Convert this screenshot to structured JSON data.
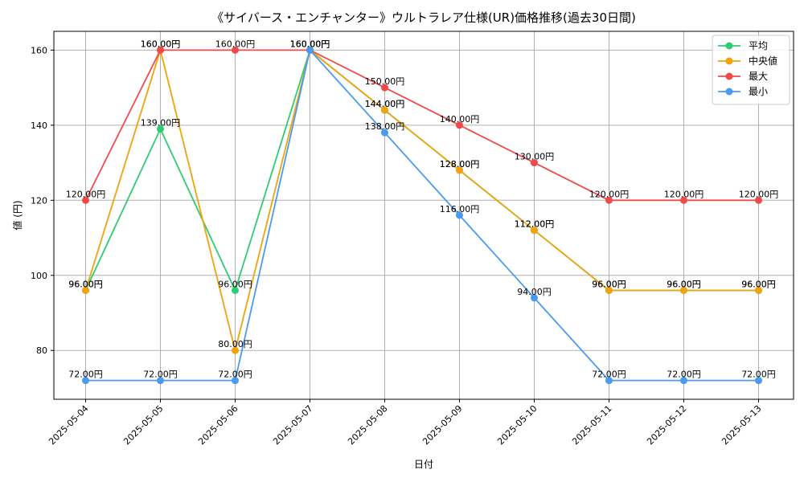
{
  "chart_data": {
    "type": "line",
    "title": "《サイバース・エンチャンター》ウルトラレア仕様(UR)価格推移(過去30日間)",
    "xlabel": "日付",
    "ylabel": "値 (円)",
    "categories": [
      "2025-05-04",
      "2025-05-05",
      "2025-05-06",
      "2025-05-07",
      "2025-05-08",
      "2025-05-09",
      "2025-05-10",
      "2025-05-11",
      "2025-05-12",
      "2025-05-13"
    ],
    "ylim": [
      67,
      165
    ],
    "yticks": [
      80,
      100,
      120,
      140,
      160
    ],
    "grid": true,
    "legend_position": "top-right",
    "label_suffix": "円",
    "series": [
      {
        "name": "平均",
        "color": "#2ecc71",
        "values": [
          96,
          139,
          96,
          160,
          144,
          128,
          112,
          96,
          96,
          96
        ]
      },
      {
        "name": "中央値",
        "color": "#f0a30a",
        "values": [
          96,
          160,
          80,
          160,
          144,
          128,
          112,
          96,
          96,
          96
        ]
      },
      {
        "name": "最大",
        "color": "#f04a4a",
        "values": [
          120,
          160,
          160,
          160,
          150,
          140,
          130,
          120,
          120,
          120
        ]
      },
      {
        "name": "最小",
        "color": "#4a9af0",
        "values": [
          72,
          72,
          72,
          160,
          138,
          116,
          94,
          72,
          72,
          72
        ]
      }
    ]
  }
}
